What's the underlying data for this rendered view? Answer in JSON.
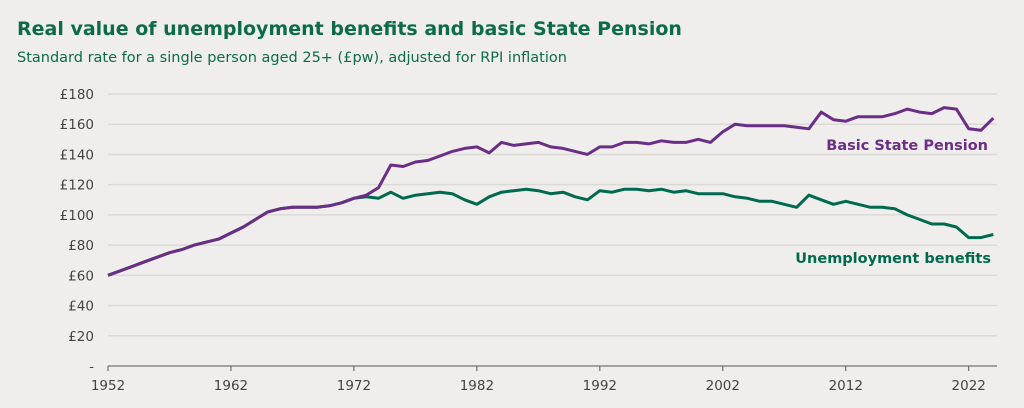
{
  "chart_data": {
    "type": "line",
    "title": "Real value of unemployment benefits and basic State Pension",
    "subtitle": "Standard rate for a single person aged 25+ (£pw), adjusted for RPI inflation",
    "xlabel": "",
    "ylabel": "",
    "xlim": [
      1952,
      2024
    ],
    "ylim": [
      0,
      180
    ],
    "grid": true,
    "x_ticks": [
      "1952",
      "1962",
      "1972",
      "1982",
      "1992",
      "2002",
      "2012",
      "2022"
    ],
    "y_ticks": [
      "-",
      "£20",
      "£40",
      "£60",
      "£80",
      "£100",
      "£120",
      "£140",
      "£160",
      "£180"
    ],
    "x_start": 1952,
    "series": [
      {
        "name": "Basic State Pension",
        "color": "#6b2e86",
        "label_color": "#6b2e86",
        "values": [
          60,
          63,
          66,
          69,
          72,
          75,
          77,
          80,
          82,
          84,
          88,
          92,
          97,
          102,
          104,
          105,
          105,
          105,
          106,
          108,
          111,
          113,
          118,
          133,
          132,
          135,
          136,
          139,
          142,
          144,
          145,
          141,
          148,
          146,
          147,
          148,
          145,
          144,
          142,
          140,
          145,
          145,
          148,
          148,
          147,
          149,
          148,
          148,
          150,
          148,
          155,
          160,
          159,
          159,
          159,
          159,
          158,
          157,
          168,
          163,
          162,
          165,
          165,
          165,
          167,
          170,
          168,
          167,
          171,
          170,
          157,
          156,
          164
        ]
      },
      {
        "name": "Unemployment benefits",
        "color": "#006a4e",
        "label_color": "#006a4e",
        "values": [
          60,
          63,
          66,
          69,
          72,
          75,
          77,
          80,
          82,
          84,
          88,
          92,
          97,
          102,
          104,
          105,
          105,
          105,
          106,
          108,
          111,
          112,
          111,
          115,
          111,
          113,
          114,
          115,
          114,
          110,
          107,
          112,
          115,
          116,
          117,
          116,
          114,
          115,
          112,
          110,
          116,
          115,
          117,
          117,
          116,
          117,
          115,
          116,
          114,
          114,
          114,
          112,
          111,
          109,
          109,
          107,
          105,
          113,
          110,
          107,
          109,
          107,
          105,
          105,
          104,
          100,
          97,
          94,
          94,
          92,
          85,
          85,
          87
        ]
      }
    ]
  }
}
